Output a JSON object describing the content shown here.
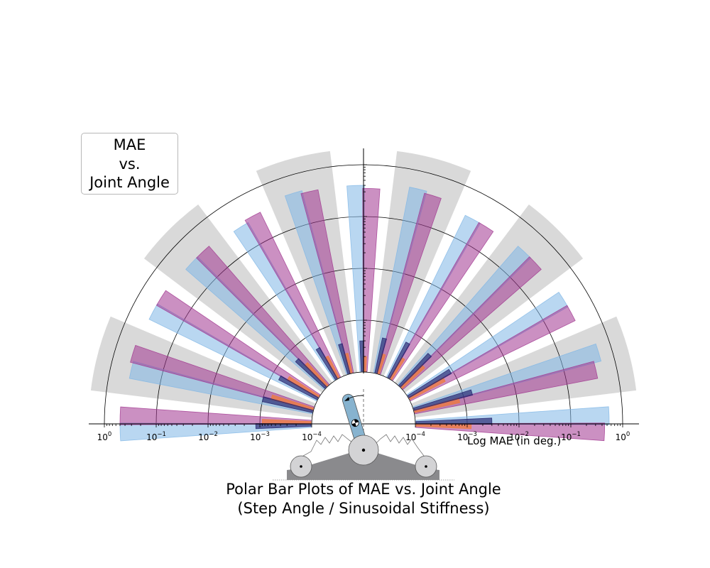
{
  "chart_data": {
    "type": "polar-bar",
    "title": "Polar Bar Plots of MAE vs. Joint Angle",
    "subtitle": "(Step Angle / Sinusoidal Stiffness)",
    "legend_title": [
      "MAE",
      "vs.",
      "Joint Angle"
    ],
    "xlabel": "Log MAE (in deg.)",
    "radial_axis": {
      "scale": "log",
      "range": [
        0.0001,
        1
      ]
    },
    "tick_labels": {
      "left": [
        {
          "base": "10",
          "exp": "0"
        },
        {
          "base": "10",
          "exp": "−1"
        },
        {
          "base": "10",
          "exp": "−2"
        },
        {
          "base": "10",
          "exp": "−3"
        },
        {
          "base": "10",
          "exp": "−4"
        }
      ],
      "right": [
        {
          "base": "10",
          "exp": "−4"
        },
        {
          "base": "10",
          "exp": "−3"
        },
        {
          "base": "10",
          "exp": "−2"
        },
        {
          "base": "10",
          "exp": "−1"
        },
        {
          "base": "10",
          "exp": "0"
        }
      ]
    },
    "angles_deg": [
      0,
      15,
      30,
      45,
      60,
      75,
      90,
      105,
      120,
      135,
      150,
      165,
      180
    ],
    "background_angles_deg": [
      15,
      45,
      75,
      105,
      135,
      165
    ],
    "background_value": 2.0,
    "series": [
      {
        "color": "#1f1f6b",
        "values": [
          0.003,
          0.0015,
          0.0009,
          0.0007,
          0.0006,
          0.0005,
          0.0004,
          0.0004,
          0.0005,
          0.0006,
          0.0007,
          0.001,
          0.0012
        ]
      },
      {
        "color": "#f07a38",
        "values": [
          0.0012,
          0.0008,
          0.0006,
          0.0004,
          0.0003,
          0.00025,
          0.0002,
          0.00025,
          0.0003,
          0.0004,
          0.0005,
          0.0007,
          0.0009
        ]
      },
      {
        "color": "#7fb7e6",
        "values": [
          0.55,
          0.55,
          0.35,
          0.35,
          0.3,
          0.45,
          0.4,
          0.45,
          0.3,
          0.35,
          0.4,
          0.4,
          0.5
        ]
      },
      {
        "color": "#a0358f",
        "values": [
          0.45,
          0.4,
          0.35,
          0.35,
          0.3,
          0.4,
          0.35,
          0.4,
          0.35,
          0.35,
          0.4,
          0.45,
          0.5
        ]
      }
    ],
    "colors": {
      "background": "#d9d9d9",
      "robot_link": "#87b3cf",
      "robot_base": "#8a8a8d",
      "robot_wheel": "#d3d3d5"
    }
  }
}
